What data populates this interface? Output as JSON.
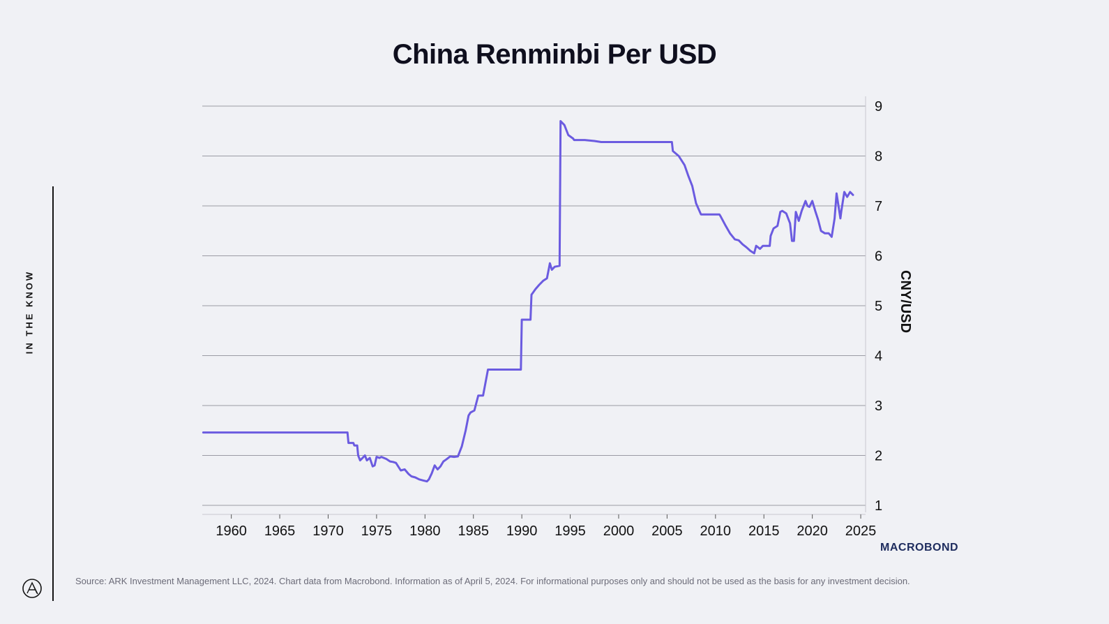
{
  "page": {
    "title": "China Renminbi Per USD",
    "side_label": "IN THE KNOW",
    "footer": "Source: ARK Investment Management LLC, 2024. Chart data from Macrobond. Information as of April 5, 2024. For informational purposes only and should not be used as the basis for any investment decision.",
    "macrobond_logo": "MACROBOND"
  },
  "chart_data": {
    "type": "line",
    "title": "China Renminbi Per USD",
    "xlabel": "",
    "ylabel": "CNY/USD",
    "xlim": [
      1957,
      2025.5
    ],
    "ylim": [
      1,
      9
    ],
    "x_ticks": [
      1960,
      1965,
      1970,
      1975,
      1980,
      1985,
      1990,
      1995,
      2000,
      2005,
      2010,
      2015,
      2020,
      2025
    ],
    "y_ticks": [
      1,
      2,
      3,
      4,
      5,
      6,
      7,
      8,
      9
    ],
    "grid": true,
    "y_axis_side": "right",
    "line_color": "#6b5be0",
    "series": [
      {
        "x": [
          1957.1,
          1972.0,
          1972.1,
          1972.6,
          1972.7,
          1973.0,
          1973.1,
          1973.3,
          1973.6,
          1973.8,
          1974.0,
          1974.3,
          1974.6,
          1974.8,
          1975.0,
          1975.3,
          1975.5,
          1976.0,
          1976.4,
          1976.7,
          1977.0,
          1977.5,
          1977.9,
          1978.3,
          1978.6,
          1979.0,
          1979.4,
          1979.8,
          1980.2,
          1980.4,
          1980.7,
          1981.0,
          1981.3,
          1981.6,
          1981.9,
          1982.2,
          1982.6,
          1983.0,
          1983.4,
          1983.8,
          1984.2,
          1984.5,
          1984.7,
          1984.9,
          1985.1,
          1985.5,
          1985.8,
          1986.0,
          1986.5,
          1986.6,
          1989.9,
          1990.0,
          1990.9,
          1991.0,
          1991.4,
          1991.8,
          1992.2,
          1992.6,
          1992.9,
          1993.1,
          1993.4,
          1993.9,
          1994.0,
          1994.4,
          1994.8,
          1995.3,
          1995.4,
          1996.5,
          1997.5,
          1998.2,
          1999.5,
          2000.5,
          2005.5,
          2005.6,
          2006.2,
          2006.8,
          2007.2,
          2007.6,
          2008.0,
          2008.5,
          2008.6,
          2010.4,
          2010.5,
          2011.0,
          2011.5,
          2012.0,
          2012.4,
          2012.8,
          2013.2,
          2013.6,
          2014.0,
          2014.2,
          2014.6,
          2014.9,
          2015.6,
          2015.7,
          2016.0,
          2016.4,
          2016.7,
          2016.9,
          2017.3,
          2017.7,
          2017.9,
          2018.1,
          2018.3,
          2018.6,
          2018.9,
          2019.3,
          2019.5,
          2019.7,
          2020.0,
          2020.3,
          2020.6,
          2020.9,
          2021.3,
          2021.7,
          2022.0,
          2022.3,
          2022.5,
          2022.9,
          2023.0,
          2023.3,
          2023.6,
          2023.9,
          2024.2
        ],
        "y": [
          2.46,
          2.46,
          2.25,
          2.25,
          2.2,
          2.2,
          2.0,
          1.9,
          1.96,
          2.0,
          1.9,
          1.95,
          1.78,
          1.8,
          1.97,
          1.95,
          1.97,
          1.93,
          1.88,
          1.87,
          1.85,
          1.7,
          1.72,
          1.63,
          1.58,
          1.56,
          1.52,
          1.5,
          1.48,
          1.52,
          1.64,
          1.8,
          1.72,
          1.78,
          1.88,
          1.92,
          1.98,
          1.97,
          1.98,
          2.18,
          2.5,
          2.8,
          2.86,
          2.88,
          2.9,
          3.2,
          3.2,
          3.2,
          3.72,
          3.72,
          3.72,
          4.72,
          4.72,
          5.22,
          5.33,
          5.42,
          5.5,
          5.55,
          5.85,
          5.72,
          5.78,
          5.8,
          8.7,
          8.62,
          8.42,
          8.35,
          8.32,
          8.32,
          8.3,
          8.28,
          8.28,
          8.28,
          8.28,
          8.1,
          8.0,
          7.82,
          7.6,
          7.4,
          7.05,
          6.83,
          6.83,
          6.83,
          6.8,
          6.62,
          6.45,
          6.33,
          6.31,
          6.23,
          6.17,
          6.1,
          6.05,
          6.2,
          6.14,
          6.2,
          6.2,
          6.4,
          6.55,
          6.6,
          6.88,
          6.9,
          6.85,
          6.65,
          6.3,
          6.3,
          6.88,
          6.7,
          6.9,
          7.1,
          7.0,
          6.98,
          7.1,
          6.9,
          6.72,
          6.5,
          6.45,
          6.45,
          6.38,
          6.75,
          7.25,
          6.75,
          6.9,
          7.28,
          7.18,
          7.28,
          7.22
        ]
      }
    ]
  }
}
